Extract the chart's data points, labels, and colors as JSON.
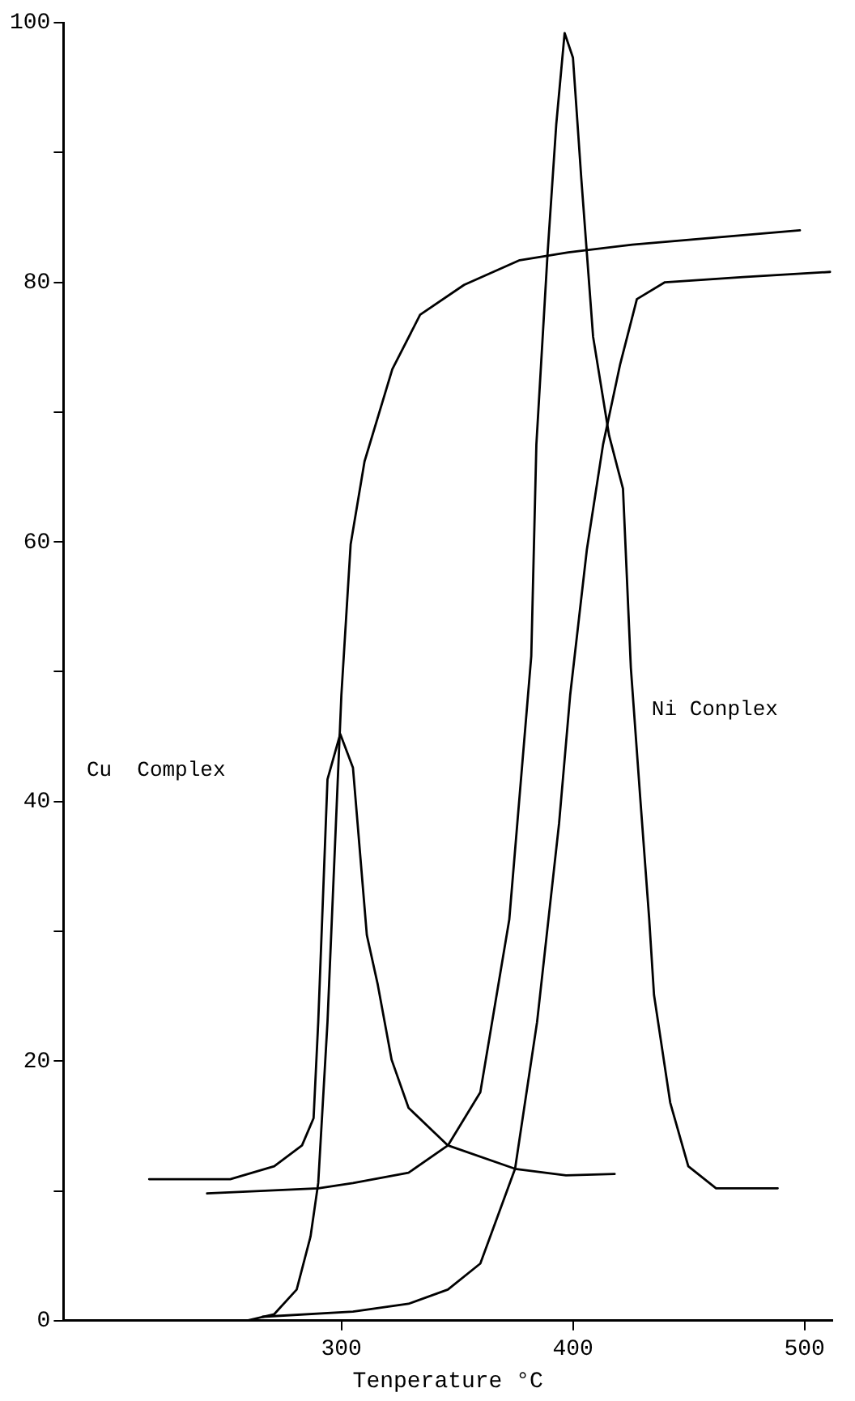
{
  "chart_data": {
    "type": "line",
    "xlabel": "Tenperature °C",
    "xlim": [
      180,
      512
    ],
    "xticks": [
      300,
      400,
      500
    ],
    "ylim": [
      0,
      100
    ],
    "yticks": [
      0,
      {
        "value": 10,
        "label": null
      },
      20,
      {
        "value": 30,
        "label": null
      },
      40,
      {
        "value": 50,
        "label": null
      },
      60,
      {
        "value": 70,
        "label": null
      },
      80,
      {
        "value": 90,
        "label": null
      },
      100
    ],
    "grid": false,
    "legend": false,
    "marker": "none",
    "line_style": "solid",
    "annotations": [
      "Cu  Complex",
      "Ni Conplex"
    ],
    "series": [
      {
        "color": "#000000",
        "x": [
          217,
          252,
          271,
          283,
          288,
          290,
          294,
          299.5,
          305,
          311,
          315.7,
          321.7,
          329,
          346,
          375,
          397,
          418
        ],
        "values": [
          10.9,
          10.9,
          11.9,
          13.5,
          15.6,
          23,
          41.7,
          45.2,
          42.6,
          29.7,
          25.9,
          20.1,
          16.4,
          13.5,
          11.7,
          11.2,
          11.3
        ]
      },
      {
        "color": "#000000",
        "x": [
          259,
          271,
          280.7,
          286.7,
          290,
          294,
          300,
          304,
          310,
          322,
          334,
          353,
          377,
          398,
          425.6,
          498
        ],
        "values": [
          0,
          0.5,
          2.4,
          6.5,
          10.6,
          23,
          48.2,
          59.8,
          66.2,
          73.3,
          77.5,
          79.8,
          81.7,
          82.3,
          82.9,
          84
        ]
      },
      {
        "color": "#000000",
        "x": [
          242,
          290,
          305,
          329,
          346,
          360,
          372.5,
          382,
          384.2,
          389,
          392.8,
          396.4,
          400,
          403.6,
          408.7,
          415.6,
          421.6,
          425,
          429,
          432.9,
          435,
          442,
          449.8,
          461.8,
          488.4
        ],
        "values": [
          9.8,
          10.2,
          10.6,
          11.4,
          13.5,
          17.6,
          30.9,
          51.2,
          67.5,
          82.1,
          92.2,
          99.2,
          97.3,
          88,
          75.8,
          68.2,
          64.1,
          50.3,
          40.4,
          31,
          25.1,
          16.8,
          11.9,
          10.2,
          10.2
        ]
      },
      {
        "color": "#000000",
        "x": [
          266,
          305,
          329,
          346,
          360,
          375,
          384.5,
          394,
          398.8,
          406,
          413,
          420.4,
          427.6,
          439.7,
          473.5,
          511
        ],
        "values": [
          0.3,
          0.7,
          1.3,
          2.4,
          4.4,
          11.7,
          23,
          38.3,
          48.2,
          59.4,
          67.5,
          73.7,
          78.7,
          80,
          80.4,
          80.8
        ]
      }
    ]
  }
}
